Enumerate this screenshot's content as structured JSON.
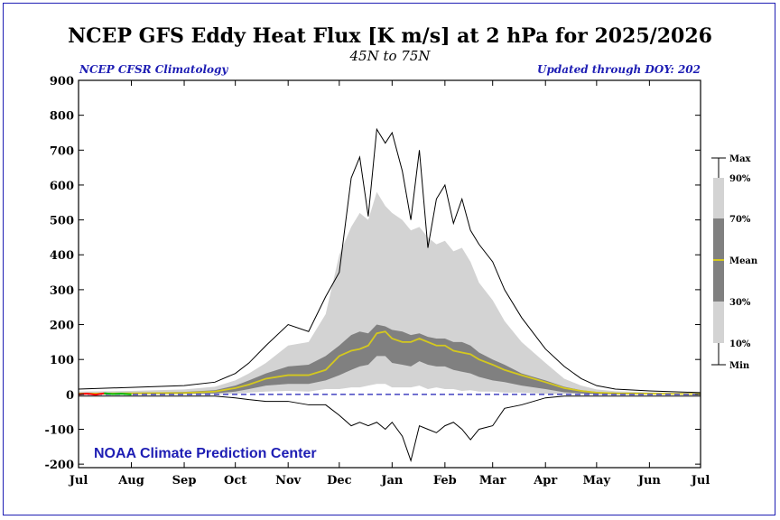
{
  "chart_data": {
    "type": "area",
    "title": "NCEP GFS Eddy Heat Flux [K m/s] at 2 hPa for 2025/2026",
    "subtitle": "45N to 75N",
    "left_note": "NCEP CFSR Climatology",
    "right_note": "Updated through DOY: 202",
    "credit": "NOAA Climate Prediction Center",
    "ylim": [
      -210,
      900
    ],
    "yticks": [
      900,
      800,
      700,
      600,
      500,
      400,
      300,
      200,
      100,
      0,
      -100,
      -200
    ],
    "xlim": [
      0,
      365
    ],
    "month_ticks": [
      {
        "label": "Jul",
        "day": 0
      },
      {
        "label": "Aug",
        "day": 31
      },
      {
        "label": "Sep",
        "day": 62
      },
      {
        "label": "Oct",
        "day": 92
      },
      {
        "label": "Nov",
        "day": 123
      },
      {
        "label": "Dec",
        "day": 153
      },
      {
        "label": "Jan",
        "day": 184
      },
      {
        "label": "Feb",
        "day": 215
      },
      {
        "label": "Mar",
        "day": 243
      },
      {
        "label": "Apr",
        "day": 274
      },
      {
        "label": "May",
        "day": 304
      },
      {
        "label": "Jun",
        "day": 335
      },
      {
        "label": "Jul",
        "day": 365
      }
    ],
    "climatology": {
      "day": [
        0,
        31,
        62,
        80,
        92,
        100,
        110,
        123,
        135,
        145,
        153,
        160,
        165,
        170,
        175,
        180,
        184,
        190,
        195,
        200,
        205,
        210,
        215,
        220,
        225,
        230,
        235,
        243,
        250,
        260,
        274,
        285,
        295,
        304,
        315,
        335,
        365
      ],
      "max": [
        15,
        20,
        25,
        35,
        60,
        90,
        140,
        200,
        180,
        280,
        350,
        620,
        680,
        510,
        760,
        720,
        750,
        640,
        500,
        700,
        420,
        560,
        600,
        490,
        560,
        470,
        430,
        380,
        300,
        220,
        130,
        80,
        45,
        25,
        15,
        10,
        5
      ],
      "p90": [
        8,
        10,
        14,
        22,
        40,
        60,
        90,
        140,
        150,
        230,
        400,
        480,
        520,
        500,
        580,
        540,
        520,
        500,
        470,
        480,
        450,
        430,
        440,
        410,
        420,
        380,
        320,
        270,
        210,
        150,
        90,
        45,
        25,
        14,
        9,
        6,
        4
      ],
      "p70": [
        4,
        5,
        7,
        12,
        25,
        40,
        60,
        80,
        85,
        110,
        140,
        170,
        180,
        175,
        200,
        195,
        185,
        180,
        170,
        175,
        165,
        160,
        160,
        150,
        150,
        140,
        120,
        100,
        85,
        60,
        40,
        22,
        12,
        7,
        5,
        3,
        2
      ],
      "mean": [
        2,
        3,
        4,
        8,
        18,
        28,
        45,
        55,
        55,
        70,
        110,
        125,
        130,
        140,
        175,
        180,
        160,
        150,
        150,
        160,
        150,
        140,
        140,
        125,
        120,
        115,
        100,
        85,
        70,
        55,
        35,
        18,
        10,
        5,
        3,
        2,
        1
      ],
      "p30": [
        0,
        1,
        2,
        3,
        8,
        15,
        25,
        30,
        30,
        40,
        55,
        70,
        80,
        85,
        110,
        110,
        90,
        85,
        80,
        95,
        85,
        80,
        80,
        70,
        65,
        60,
        50,
        40,
        35,
        25,
        15,
        6,
        3,
        1,
        0,
        0,
        0
      ],
      "p10": [
        -2,
        -1,
        0,
        0,
        2,
        5,
        8,
        10,
        8,
        15,
        15,
        20,
        20,
        25,
        30,
        30,
        20,
        20,
        20,
        25,
        15,
        20,
        15,
        15,
        10,
        12,
        8,
        8,
        5,
        5,
        2,
        1,
        0,
        0,
        0,
        0,
        -1
      ],
      "min": [
        -5,
        -5,
        -5,
        -5,
        -10,
        -15,
        -20,
        -20,
        -30,
        -30,
        -60,
        -90,
        -80,
        -90,
        -80,
        -100,
        -80,
        -120,
        -190,
        -90,
        -100,
        -110,
        -90,
        -80,
        -100,
        -130,
        -100,
        -90,
        -40,
        -30,
        -10,
        -5,
        -5,
        -5,
        -5,
        -5,
        -5
      ]
    },
    "current_year": {
      "name": "2025/2026",
      "day": [
        0,
        5,
        10,
        15,
        20,
        25,
        31
      ],
      "values": [
        0,
        2,
        -1,
        3,
        1,
        2,
        0
      ]
    },
    "band_legend": [
      {
        "label": "Max",
        "value": "max"
      },
      {
        "label": "90%",
        "value": "p90"
      },
      {
        "label": "70%",
        "value": "p70"
      },
      {
        "label": "Mean",
        "value": "mean"
      },
      {
        "label": "30%",
        "value": "p30"
      },
      {
        "label": "10%",
        "value": "p10"
      },
      {
        "label": "Min",
        "value": "min"
      }
    ],
    "colors": {
      "outer_band": "#d3d3d3",
      "inner_band": "#808080",
      "mean": "#d4c81e",
      "extreme": "#000000",
      "zero_line": "#1e1eb4",
      "notes": "#1e1eb4",
      "current_early": "#ff0000",
      "current_late": "#00b400",
      "frame": "#1e1eb4"
    }
  }
}
